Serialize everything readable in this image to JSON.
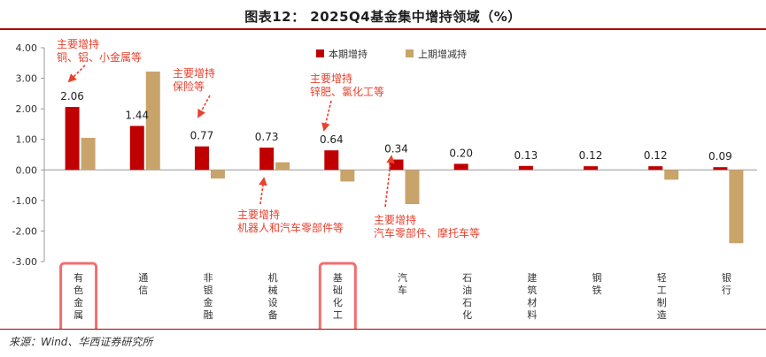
{
  "title": "图表12： 2025Q4基金集中增持领域（%）",
  "source": "来源：Wind、华西证券研究所",
  "colors": {
    "current": "#C00000",
    "previous": "#C9A46A",
    "annotation": "#E8412E",
    "highlight_box": "#F26E6E",
    "axis": "#999999",
    "rule": "#B00000"
  },
  "chart_data": {
    "type": "bar",
    "categories": [
      "有色金属",
      "通信",
      "非银金融",
      "机械设备",
      "基础化工",
      "汽车",
      "石油石化",
      "建筑材料",
      "钢铁",
      "轻工制造",
      "银行"
    ],
    "series": [
      {
        "name": "本期增持",
        "values": [
          2.06,
          1.44,
          0.77,
          0.73,
          0.64,
          0.34,
          0.2,
          0.13,
          0.12,
          0.12,
          0.09
        ]
      },
      {
        "name": "上期增减持",
        "values": [
          1.05,
          3.22,
          -0.28,
          0.25,
          -0.38,
          -1.12,
          0.0,
          0.0,
          0.0,
          -0.32,
          -2.4
        ]
      }
    ],
    "data_labels": [
      "2.06",
      "1.44",
      "0.77",
      "0.73",
      "0.64",
      "0.34",
      "0.20",
      "0.13",
      "0.12",
      "0.12",
      "0.09"
    ],
    "ylim": [
      -3.0,
      4.0
    ],
    "yticks": [
      "4.00",
      "3.00",
      "2.00",
      "1.00",
      "0.00",
      "-1.00",
      "-2.00",
      "-3.00"
    ],
    "legend_position": "top",
    "highlighted_categories": [
      "有色金属",
      "基础化工"
    ],
    "annotations": [
      {
        "lines": [
          "主要增持",
          "铜、铝、小金属等"
        ],
        "category": "有色金属"
      },
      {
        "lines": [
          "主要增持",
          "保险等"
        ],
        "category": "非银金融"
      },
      {
        "lines": [
          "主要增持",
          "机器人和汽车零部件等"
        ],
        "category": "机械设备"
      },
      {
        "lines": [
          "主要增持",
          "锌肥、氯化工等"
        ],
        "category": "基础化工"
      },
      {
        "lines": [
          "主要增持",
          "汽车零部件、摩托车等"
        ],
        "category": "汽车"
      }
    ]
  }
}
